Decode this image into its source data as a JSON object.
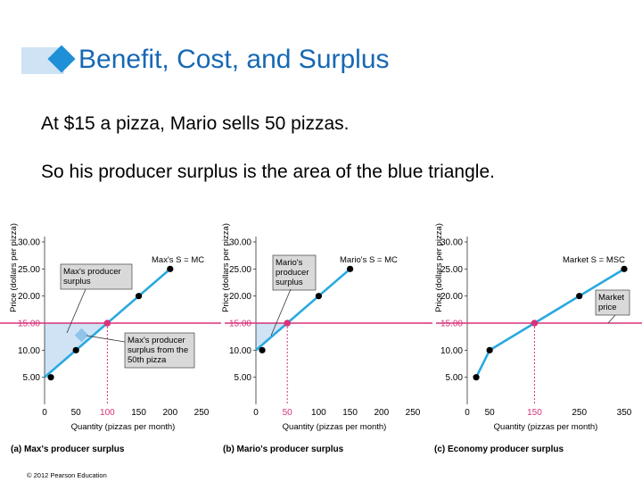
{
  "slide": {
    "title": "Benefit, Cost, and Surplus",
    "line1": "At $15 a pizza, Mario sells 50 pizzas.",
    "line2": "So his producer surplus is the area of the blue triangle.",
    "copyright": "© 2012 Pearson Education"
  },
  "colors": {
    "title": "#1668b4",
    "supply_line": "#29a9e0",
    "price_line": "#d6337a",
    "surplus_fill": "#cfe3f5",
    "point": "#000000",
    "highlight_point": "#d6337a"
  },
  "chart_data": [
    {
      "type": "line",
      "panel_label": "(a) Max's producer surplus",
      "xlabel": "Quantity (pizzas per month)",
      "ylabel": "Price (dollars per pizza)",
      "xlim": [
        0,
        250
      ],
      "ylim": [
        0,
        30
      ],
      "x_ticks": [
        "0",
        "50",
        "100",
        "150",
        "200",
        "250"
      ],
      "y_ticks": [
        "5.00",
        "10.00",
        "15.00",
        "20.00",
        "25.00",
        "30.00"
      ],
      "curve_label": "Max's S = MC",
      "series": [
        {
          "x": [
            0,
            200
          ],
          "y": [
            5,
            25
          ]
        }
      ],
      "points": [
        {
          "x": 10,
          "y": 5
        },
        {
          "x": 50,
          "y": 10
        },
        {
          "x": 150,
          "y": 20
        },
        {
          "x": 200,
          "y": 25
        }
      ],
      "price": 15,
      "price_label": "15.00",
      "highlight_point": {
        "x": 100,
        "y": 15
      },
      "surplus_area": [
        [
          0,
          15
        ],
        [
          0,
          5
        ],
        [
          100,
          15
        ]
      ],
      "annotations": [
        {
          "lines": [
            "Max's producer",
            "surplus"
          ]
        },
        {
          "lines": [
            "Max's producer",
            "surplus from the",
            "50th pizza"
          ]
        }
      ]
    },
    {
      "type": "line",
      "panel_label": "(b) Mario's producer surplus",
      "xlabel": "Quantity (pizzas per month)",
      "ylabel": "Price (dollars per pizza)",
      "xlim": [
        0,
        250
      ],
      "ylim": [
        0,
        30
      ],
      "x_ticks": [
        "0",
        "50",
        "100",
        "150",
        "200",
        "250"
      ],
      "y_ticks": [
        "5.00",
        "10.00",
        "15.00",
        "20.00",
        "25.00",
        "30.00"
      ],
      "curve_label": "Mario's S = MC",
      "series": [
        {
          "x": [
            0,
            150
          ],
          "y": [
            10,
            25
          ]
        }
      ],
      "points": [
        {
          "x": 10,
          "y": 10
        },
        {
          "x": 100,
          "y": 20
        },
        {
          "x": 150,
          "y": 25
        }
      ],
      "price": 15,
      "price_label": "15.00",
      "highlight_point": {
        "x": 50,
        "y": 15
      },
      "surplus_area": [
        [
          0,
          15
        ],
        [
          0,
          10
        ],
        [
          50,
          15
        ]
      ],
      "annotations": [
        {
          "lines": [
            "Mario's",
            "producer",
            "surplus"
          ]
        }
      ]
    },
    {
      "type": "line",
      "panel_label": "(c) Economy producer surplus",
      "xlabel": "Quantity (pizzas per month)",
      "ylabel": "Price (dollars per pizza)",
      "xlim": [
        0,
        350
      ],
      "ylim": [
        0,
        30
      ],
      "x_ticks": [
        "0",
        "50",
        "150",
        "250",
        "350"
      ],
      "y_ticks": [
        "5.00",
        "10.00",
        "15.00",
        "20.00",
        "25.00",
        "30.00"
      ],
      "curve_label": "Market S = MSC",
      "series": [
        {
          "x": [
            20,
            50,
            150,
            250,
            350
          ],
          "y": [
            5,
            10,
            15,
            20,
            25
          ]
        }
      ],
      "points": [
        {
          "x": 20,
          "y": 5
        },
        {
          "x": 50,
          "y": 10
        },
        {
          "x": 250,
          "y": 20
        },
        {
          "x": 350,
          "y": 25
        }
      ],
      "price": 15,
      "price_label": "15.00",
      "highlight_point": {
        "x": 150,
        "y": 15
      },
      "annotations": [
        {
          "lines": [
            "Market",
            "price"
          ]
        }
      ]
    }
  ]
}
